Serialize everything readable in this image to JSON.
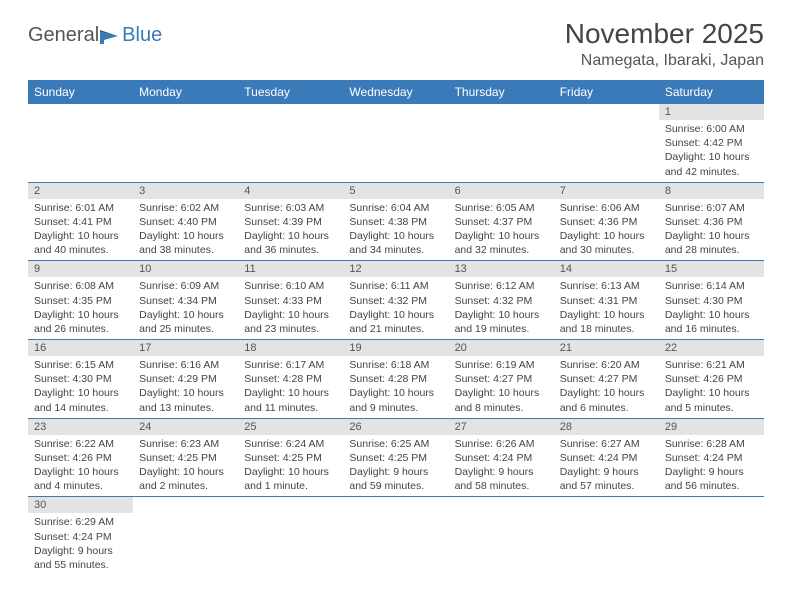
{
  "logo": {
    "text1": "General",
    "text2": "Blue"
  },
  "title": "November 2025",
  "location": "Namegata, Ibaraki, Japan",
  "weekdays": [
    "Sunday",
    "Monday",
    "Tuesday",
    "Wednesday",
    "Thursday",
    "Friday",
    "Saturday"
  ],
  "colors": {
    "header_bg": "#3a7ab8",
    "header_fg": "#ffffff",
    "daynum_bg": "#e3e3e3",
    "cell_border": "#3a7ab8",
    "text": "#444444"
  },
  "cells": [
    {
      "day": "",
      "lines": []
    },
    {
      "day": "",
      "lines": []
    },
    {
      "day": "",
      "lines": []
    },
    {
      "day": "",
      "lines": []
    },
    {
      "day": "",
      "lines": []
    },
    {
      "day": "",
      "lines": []
    },
    {
      "day": "1",
      "lines": [
        "Sunrise: 6:00 AM",
        "Sunset: 4:42 PM",
        "Daylight: 10 hours",
        "and 42 minutes."
      ]
    },
    {
      "day": "2",
      "lines": [
        "Sunrise: 6:01 AM",
        "Sunset: 4:41 PM",
        "Daylight: 10 hours",
        "and 40 minutes."
      ]
    },
    {
      "day": "3",
      "lines": [
        "Sunrise: 6:02 AM",
        "Sunset: 4:40 PM",
        "Daylight: 10 hours",
        "and 38 minutes."
      ]
    },
    {
      "day": "4",
      "lines": [
        "Sunrise: 6:03 AM",
        "Sunset: 4:39 PM",
        "Daylight: 10 hours",
        "and 36 minutes."
      ]
    },
    {
      "day": "5",
      "lines": [
        "Sunrise: 6:04 AM",
        "Sunset: 4:38 PM",
        "Daylight: 10 hours",
        "and 34 minutes."
      ]
    },
    {
      "day": "6",
      "lines": [
        "Sunrise: 6:05 AM",
        "Sunset: 4:37 PM",
        "Daylight: 10 hours",
        "and 32 minutes."
      ]
    },
    {
      "day": "7",
      "lines": [
        "Sunrise: 6:06 AM",
        "Sunset: 4:36 PM",
        "Daylight: 10 hours",
        "and 30 minutes."
      ]
    },
    {
      "day": "8",
      "lines": [
        "Sunrise: 6:07 AM",
        "Sunset: 4:36 PM",
        "Daylight: 10 hours",
        "and 28 minutes."
      ]
    },
    {
      "day": "9",
      "lines": [
        "Sunrise: 6:08 AM",
        "Sunset: 4:35 PM",
        "Daylight: 10 hours",
        "and 26 minutes."
      ]
    },
    {
      "day": "10",
      "lines": [
        "Sunrise: 6:09 AM",
        "Sunset: 4:34 PM",
        "Daylight: 10 hours",
        "and 25 minutes."
      ]
    },
    {
      "day": "11",
      "lines": [
        "Sunrise: 6:10 AM",
        "Sunset: 4:33 PM",
        "Daylight: 10 hours",
        "and 23 minutes."
      ]
    },
    {
      "day": "12",
      "lines": [
        "Sunrise: 6:11 AM",
        "Sunset: 4:32 PM",
        "Daylight: 10 hours",
        "and 21 minutes."
      ]
    },
    {
      "day": "13",
      "lines": [
        "Sunrise: 6:12 AM",
        "Sunset: 4:32 PM",
        "Daylight: 10 hours",
        "and 19 minutes."
      ]
    },
    {
      "day": "14",
      "lines": [
        "Sunrise: 6:13 AM",
        "Sunset: 4:31 PM",
        "Daylight: 10 hours",
        "and 18 minutes."
      ]
    },
    {
      "day": "15",
      "lines": [
        "Sunrise: 6:14 AM",
        "Sunset: 4:30 PM",
        "Daylight: 10 hours",
        "and 16 minutes."
      ]
    },
    {
      "day": "16",
      "lines": [
        "Sunrise: 6:15 AM",
        "Sunset: 4:30 PM",
        "Daylight: 10 hours",
        "and 14 minutes."
      ]
    },
    {
      "day": "17",
      "lines": [
        "Sunrise: 6:16 AM",
        "Sunset: 4:29 PM",
        "Daylight: 10 hours",
        "and 13 minutes."
      ]
    },
    {
      "day": "18",
      "lines": [
        "Sunrise: 6:17 AM",
        "Sunset: 4:28 PM",
        "Daylight: 10 hours",
        "and 11 minutes."
      ]
    },
    {
      "day": "19",
      "lines": [
        "Sunrise: 6:18 AM",
        "Sunset: 4:28 PM",
        "Daylight: 10 hours",
        "and 9 minutes."
      ]
    },
    {
      "day": "20",
      "lines": [
        "Sunrise: 6:19 AM",
        "Sunset: 4:27 PM",
        "Daylight: 10 hours",
        "and 8 minutes."
      ]
    },
    {
      "day": "21",
      "lines": [
        "Sunrise: 6:20 AM",
        "Sunset: 4:27 PM",
        "Daylight: 10 hours",
        "and 6 minutes."
      ]
    },
    {
      "day": "22",
      "lines": [
        "Sunrise: 6:21 AM",
        "Sunset: 4:26 PM",
        "Daylight: 10 hours",
        "and 5 minutes."
      ]
    },
    {
      "day": "23",
      "lines": [
        "Sunrise: 6:22 AM",
        "Sunset: 4:26 PM",
        "Daylight: 10 hours",
        "and 4 minutes."
      ]
    },
    {
      "day": "24",
      "lines": [
        "Sunrise: 6:23 AM",
        "Sunset: 4:25 PM",
        "Daylight: 10 hours",
        "and 2 minutes."
      ]
    },
    {
      "day": "25",
      "lines": [
        "Sunrise: 6:24 AM",
        "Sunset: 4:25 PM",
        "Daylight: 10 hours",
        "and 1 minute."
      ]
    },
    {
      "day": "26",
      "lines": [
        "Sunrise: 6:25 AM",
        "Sunset: 4:25 PM",
        "Daylight: 9 hours",
        "and 59 minutes."
      ]
    },
    {
      "day": "27",
      "lines": [
        "Sunrise: 6:26 AM",
        "Sunset: 4:24 PM",
        "Daylight: 9 hours",
        "and 58 minutes."
      ]
    },
    {
      "day": "28",
      "lines": [
        "Sunrise: 6:27 AM",
        "Sunset: 4:24 PM",
        "Daylight: 9 hours",
        "and 57 minutes."
      ]
    },
    {
      "day": "29",
      "lines": [
        "Sunrise: 6:28 AM",
        "Sunset: 4:24 PM",
        "Daylight: 9 hours",
        "and 56 minutes."
      ]
    },
    {
      "day": "30",
      "lines": [
        "Sunrise: 6:29 AM",
        "Sunset: 4:24 PM",
        "Daylight: 9 hours",
        "and 55 minutes."
      ]
    },
    {
      "day": "",
      "lines": []
    },
    {
      "day": "",
      "lines": []
    },
    {
      "day": "",
      "lines": []
    },
    {
      "day": "",
      "lines": []
    },
    {
      "day": "",
      "lines": []
    },
    {
      "day": "",
      "lines": []
    }
  ]
}
